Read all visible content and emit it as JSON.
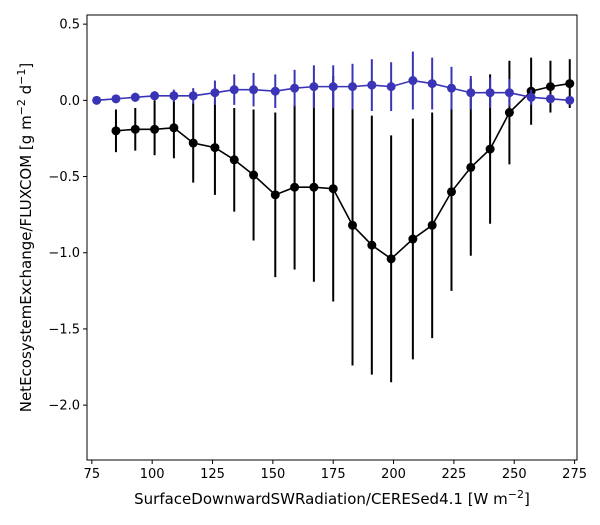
{
  "chart_data": {
    "type": "line",
    "title": "",
    "xlabel": "SurfaceDownwardSWRadiation/CERESed4.1 [W m",
    "xlabel_sup": "−2",
    "xlabel_end": "]",
    "ylabel": "NetEcosystemExchange/FLUXCOM [g m",
    "ylabel_sup1": "−2",
    "ylabel_mid": " d",
    "ylabel_sup2": "−1",
    "ylabel_end": "]",
    "xlim": [
      73,
      276
    ],
    "ylim": [
      -2.36,
      0.56
    ],
    "x_ticks": [
      75,
      100,
      125,
      150,
      175,
      200,
      225,
      250,
      275
    ],
    "y_ticks": [
      0.5,
      0.0,
      -0.5,
      -1.0,
      -1.5,
      -2.0
    ],
    "y_tick_labels": [
      "0.5",
      "0.0",
      "−0.5",
      "−1.0",
      "−1.5",
      "−2.0"
    ],
    "grid": false,
    "series": [
      {
        "color": "#000000",
        "x": [
          85,
          93,
          101,
          109,
          117,
          126,
          134,
          142,
          151,
          159,
          167,
          175,
          183,
          191,
          199,
          208,
          216,
          224,
          232,
          240,
          248,
          257,
          265,
          273
        ],
        "y": [
          -0.2,
          -0.19,
          -0.19,
          -0.18,
          -0.28,
          -0.31,
          -0.39,
          -0.49,
          -0.62,
          -0.57,
          -0.57,
          -0.58,
          -0.82,
          -0.95,
          -1.04,
          -0.91,
          -0.82,
          -0.6,
          -0.44,
          -0.32,
          -0.08,
          0.06,
          0.09,
          0.11
        ],
        "err_low": [
          0.14,
          0.14,
          0.17,
          0.2,
          0.26,
          0.31,
          0.34,
          0.43,
          0.54,
          0.54,
          0.62,
          0.74,
          0.92,
          0.85,
          0.81,
          0.79,
          0.74,
          0.65,
          0.58,
          0.49,
          0.34,
          0.22,
          0.17,
          0.16
        ],
        "err_high": [
          0.14,
          0.14,
          0.19,
          0.19,
          0.26,
          0.31,
          0.34,
          0.43,
          0.54,
          0.54,
          0.62,
          0.74,
          0.92,
          0.85,
          0.81,
          0.79,
          0.74,
          0.65,
          0.58,
          0.49,
          0.34,
          0.22,
          0.17,
          0.16
        ]
      },
      {
        "color": "#3a35b6",
        "x": [
          77,
          85,
          93,
          101,
          109,
          117,
          126,
          134,
          142,
          151,
          159,
          167,
          175,
          183,
          191,
          199,
          208,
          216,
          224,
          232,
          240,
          248,
          257,
          265,
          273
        ],
        "y": [
          0.0,
          0.01,
          0.02,
          0.03,
          0.03,
          0.03,
          0.05,
          0.07,
          0.07,
          0.06,
          0.08,
          0.09,
          0.09,
          0.09,
          0.1,
          0.09,
          0.13,
          0.11,
          0.08,
          0.05,
          0.05,
          0.05,
          0.02,
          0.01,
          0.0
        ],
        "err": [
          0.01,
          0.02,
          0.03,
          0.03,
          0.04,
          0.05,
          0.08,
          0.1,
          0.11,
          0.11,
          0.12,
          0.14,
          0.14,
          0.15,
          0.17,
          0.16,
          0.19,
          0.17,
          0.14,
          0.11,
          0.1,
          0.09,
          0.05,
          0.03,
          0.02
        ]
      }
    ]
  }
}
